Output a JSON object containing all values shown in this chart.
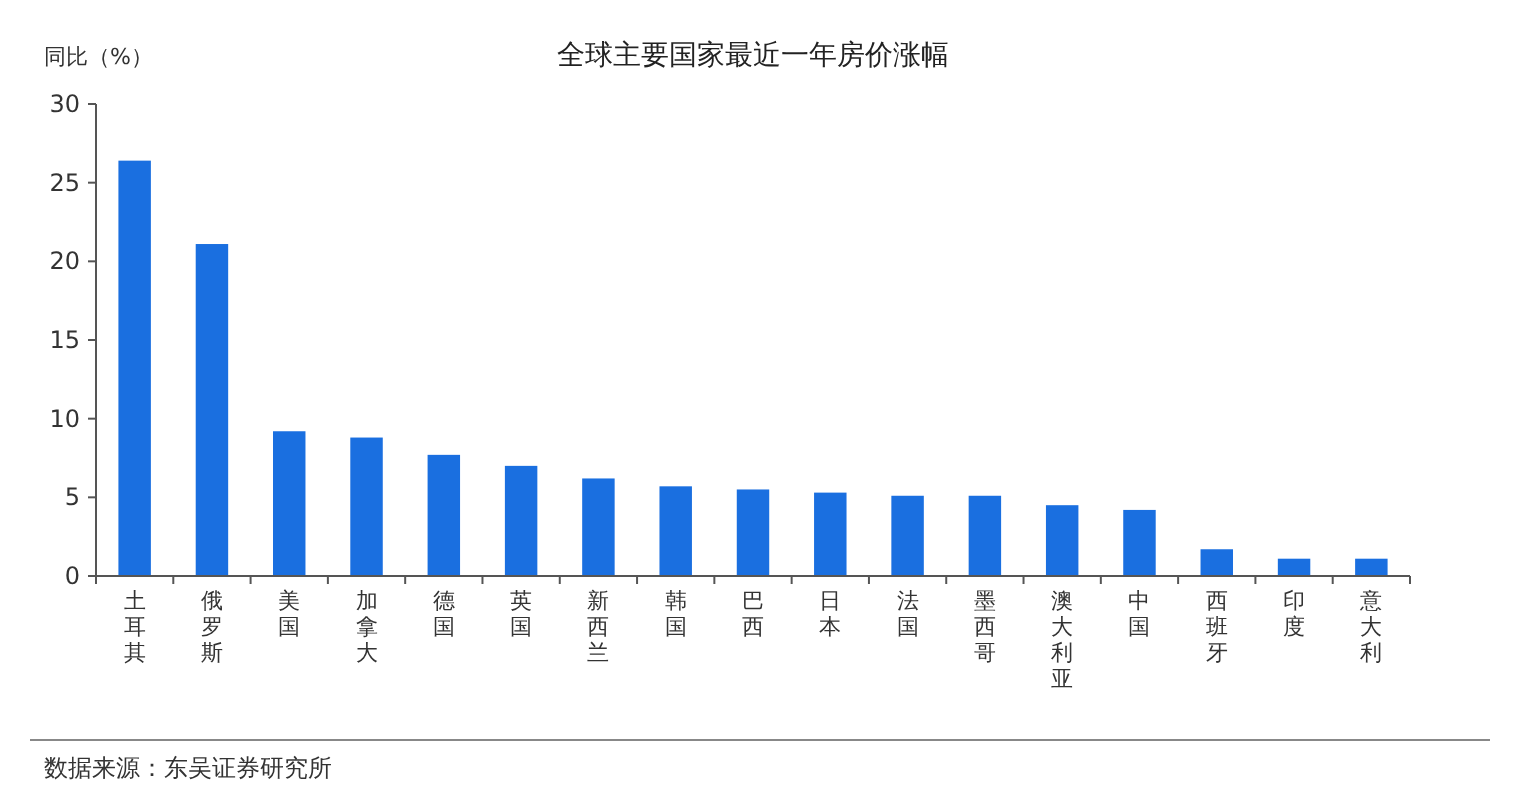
{
  "chart_data": {
    "type": "bar",
    "title": "全球主要国家最近一年房价涨幅",
    "ylabel": "同比（%）",
    "categories": [
      "土耳其",
      "俄罗斯",
      "美国",
      "加拿大",
      "德国",
      "英国",
      "新西兰",
      "韩国",
      "巴西",
      "日本",
      "法国",
      "墨西哥",
      "澳大利亚",
      "中国",
      "西班牙",
      "印度",
      "意大利"
    ],
    "values": [
      26.4,
      21.1,
      9.2,
      8.8,
      7.7,
      7.0,
      6.2,
      5.7,
      5.5,
      5.3,
      5.1,
      5.1,
      4.5,
      4.2,
      1.7,
      1.1,
      1.1
    ],
    "color": "#1a6fe0",
    "ylim": [
      0,
      30
    ],
    "yticks": [
      0,
      5,
      10,
      15,
      20,
      25,
      30
    ],
    "grid": false,
    "annotations": [
      "数据来源：东吴证券研究所"
    ]
  }
}
